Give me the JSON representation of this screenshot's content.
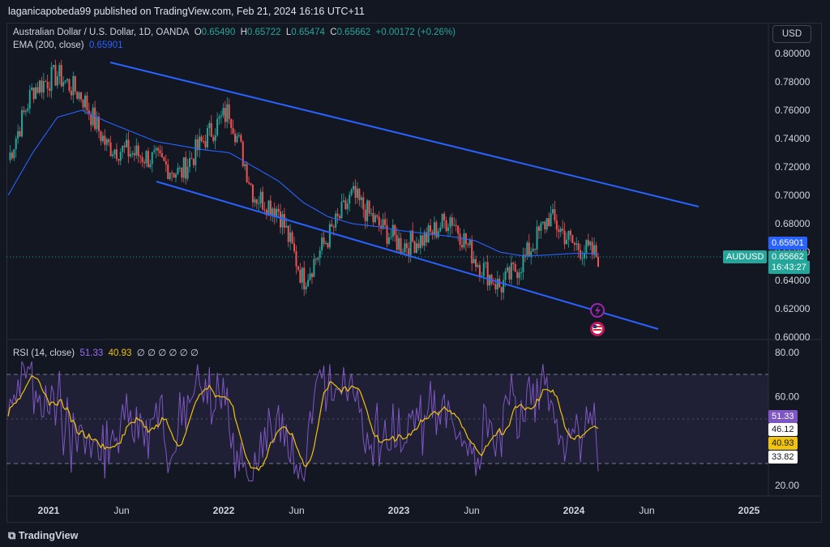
{
  "header": {
    "publisher": "laganicapobeda99 published on TradingView.com, Feb 21, 2024 16:16 UTC+11"
  },
  "symbol": {
    "title": "Australian Dollar / U.S. Dollar, 1D, OANDA",
    "o_label": "O",
    "o": "0.65490",
    "h_label": "H",
    "h": "0.65722",
    "l_label": "L",
    "l": "0.65474",
    "c_label": "C",
    "c": "0.65662",
    "change": "+0.00172 (+0.26%)"
  },
  "ema": {
    "label": "EMA (200, close)",
    "value": "0.65901"
  },
  "rsi": {
    "label": "RSI (14, close)",
    "value": "51.33",
    "ma": "40.93",
    "na": "∅ ∅ ∅ ∅ ∅ ∅"
  },
  "currency_button": "USD",
  "price_axis": [
    "0.80000",
    "0.78000",
    "0.76000",
    "0.74000",
    "0.72000",
    "0.70000",
    "0.68000",
    "0.66000",
    "0.64000",
    "0.62000",
    "0.60000"
  ],
  "rsi_axis": [
    "80.00",
    "60.00",
    "20.00"
  ],
  "price_tags": {
    "ema": "0.65901",
    "symbol": "AUDUSD",
    "last": "0.65662",
    "countdown": "16:43:27"
  },
  "rsi_tags": {
    "rsi": "51.33",
    "upper": "46.12",
    "ma": "40.93",
    "lower": "33.82"
  },
  "time_axis": [
    "2021",
    "Jun",
    "2022",
    "Jun",
    "2023",
    "Jun",
    "2024",
    "Jun",
    "2025"
  ],
  "footer": {
    "brand": "TradingView"
  },
  "colors": {
    "up": "#26a69a",
    "down": "#ef5350",
    "channel": "#2962ff",
    "ema": "#2962ff",
    "rsi": "#7e57c2",
    "rsi_ma": "#f0c30f"
  },
  "chart_data": {
    "type": "candlestick",
    "x": [
      "2020-11",
      "2021-01",
      "2021-03",
      "2021-05",
      "2021-07",
      "2021-09",
      "2021-11",
      "2022-01",
      "2022-03",
      "2022-04",
      "2022-06",
      "2022-08",
      "2022-10",
      "2022-11",
      "2023-01",
      "2023-02",
      "2023-04",
      "2023-06",
      "2023-07",
      "2023-08",
      "2023-10",
      "2023-11",
      "2023-12",
      "2024-01",
      "2024-02"
    ],
    "close": [
      0.725,
      0.775,
      0.785,
      0.77,
      0.735,
      0.73,
      0.725,
      0.715,
      0.74,
      0.76,
      0.7,
      0.69,
      0.64,
      0.67,
      0.7,
      0.68,
      0.665,
      0.67,
      0.685,
      0.655,
      0.635,
      0.655,
      0.685,
      0.665,
      0.657
    ],
    "ema200": [
      0.7,
      0.73,
      0.755,
      0.76,
      0.752,
      0.745,
      0.738,
      0.735,
      0.732,
      0.73,
      0.72,
      0.71,
      0.695,
      0.685,
      0.68,
      0.678,
      0.675,
      0.673,
      0.671,
      0.668,
      0.66,
      0.657,
      0.658,
      0.659,
      0.659
    ],
    "rsi_upper_level": 70,
    "rsi_lower_level": 30,
    "ylim_price": [
      0.6,
      0.8
    ],
    "ylim_rsi": [
      15,
      85
    ]
  }
}
